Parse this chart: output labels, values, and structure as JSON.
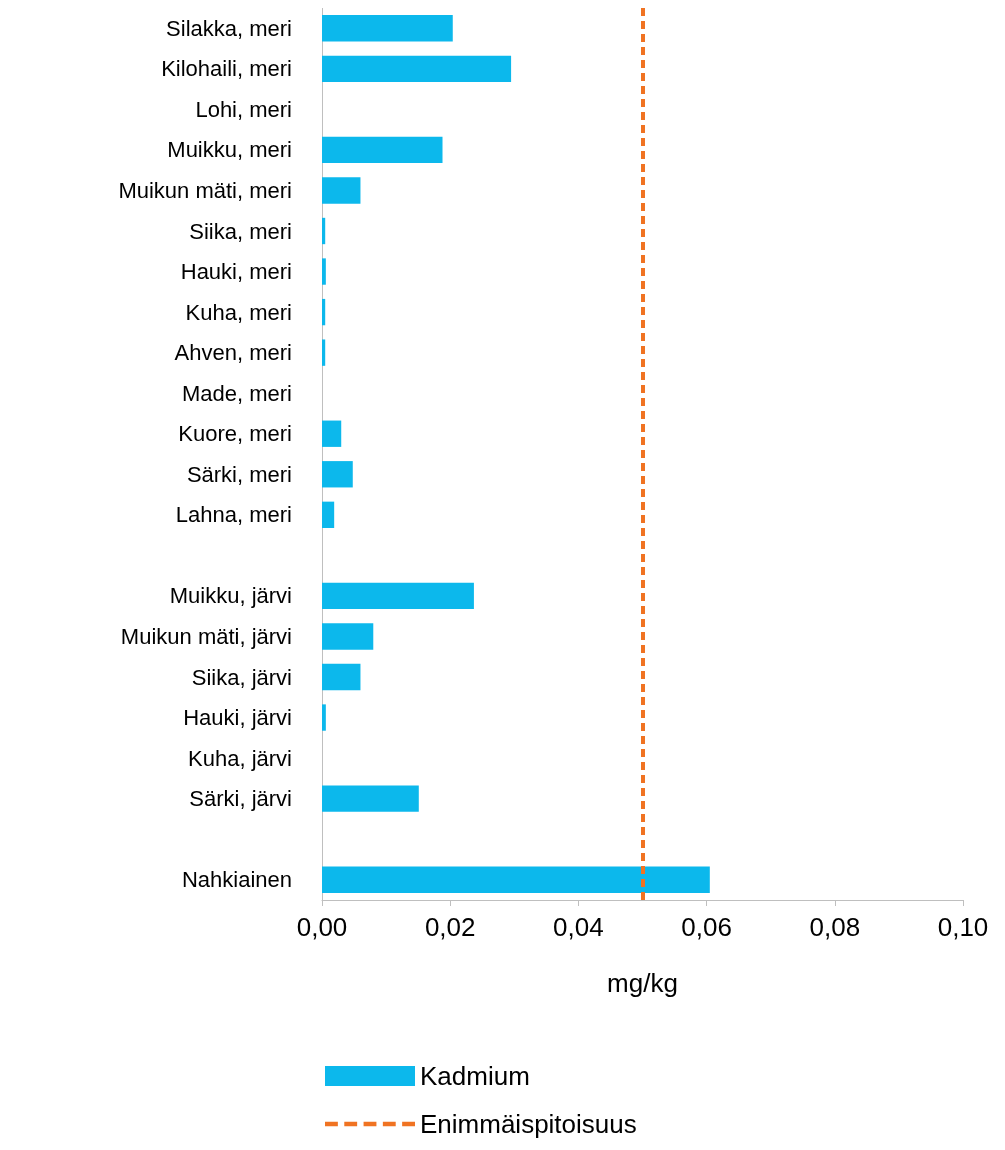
{
  "chart_data": {
    "type": "bar",
    "orientation": "horizontal",
    "categories": [
      "Silakka, meri",
      "Kilohaili, meri",
      "Lohi, meri",
      "Muikku, meri",
      "Muikun mäti, meri",
      "Siika, meri",
      "Hauki, meri",
      "Kuha, meri",
      "Ahven, meri",
      "Made, meri",
      "Kuore, meri",
      "Särki, meri",
      "Lahna, meri",
      null,
      "Muikku, järvi",
      "Muikun mäti, järvi",
      "Siika, järvi",
      "Hauki, järvi",
      "Kuha, järvi",
      "Särki, järvi",
      null,
      "Nahkiainen"
    ],
    "series": [
      {
        "name": "Kadmium",
        "color": "#0cb8ec",
        "values": [
          0.0204,
          0.0295,
          null,
          0.0188,
          0.006,
          0.0005,
          0.0006,
          0.0005,
          0.0005,
          null,
          0.003,
          0.0048,
          0.0019,
          null,
          0.0237,
          0.008,
          0.006,
          0.0006,
          null,
          0.0151,
          null,
          0.0605
        ]
      }
    ],
    "xlabel": "mg/kg",
    "xlim": [
      0,
      0.1
    ],
    "xticks": [
      {
        "value": 0,
        "label": "0,00"
      },
      {
        "value": 0.02,
        "label": "0,02"
      },
      {
        "value": 0.04,
        "label": "0,04"
      },
      {
        "value": 0.06,
        "label": "0,06"
      },
      {
        "value": 0.08,
        "label": "0,08"
      },
      {
        "value": 0.1,
        "label": "0,10"
      }
    ],
    "ref_lines": [
      {
        "axis": "x",
        "value": 0.05,
        "label": "Enimmäispitoisuus",
        "color": "#f07322",
        "line_style": "dashed"
      }
    ],
    "grid": false,
    "legend": "bottom"
  }
}
